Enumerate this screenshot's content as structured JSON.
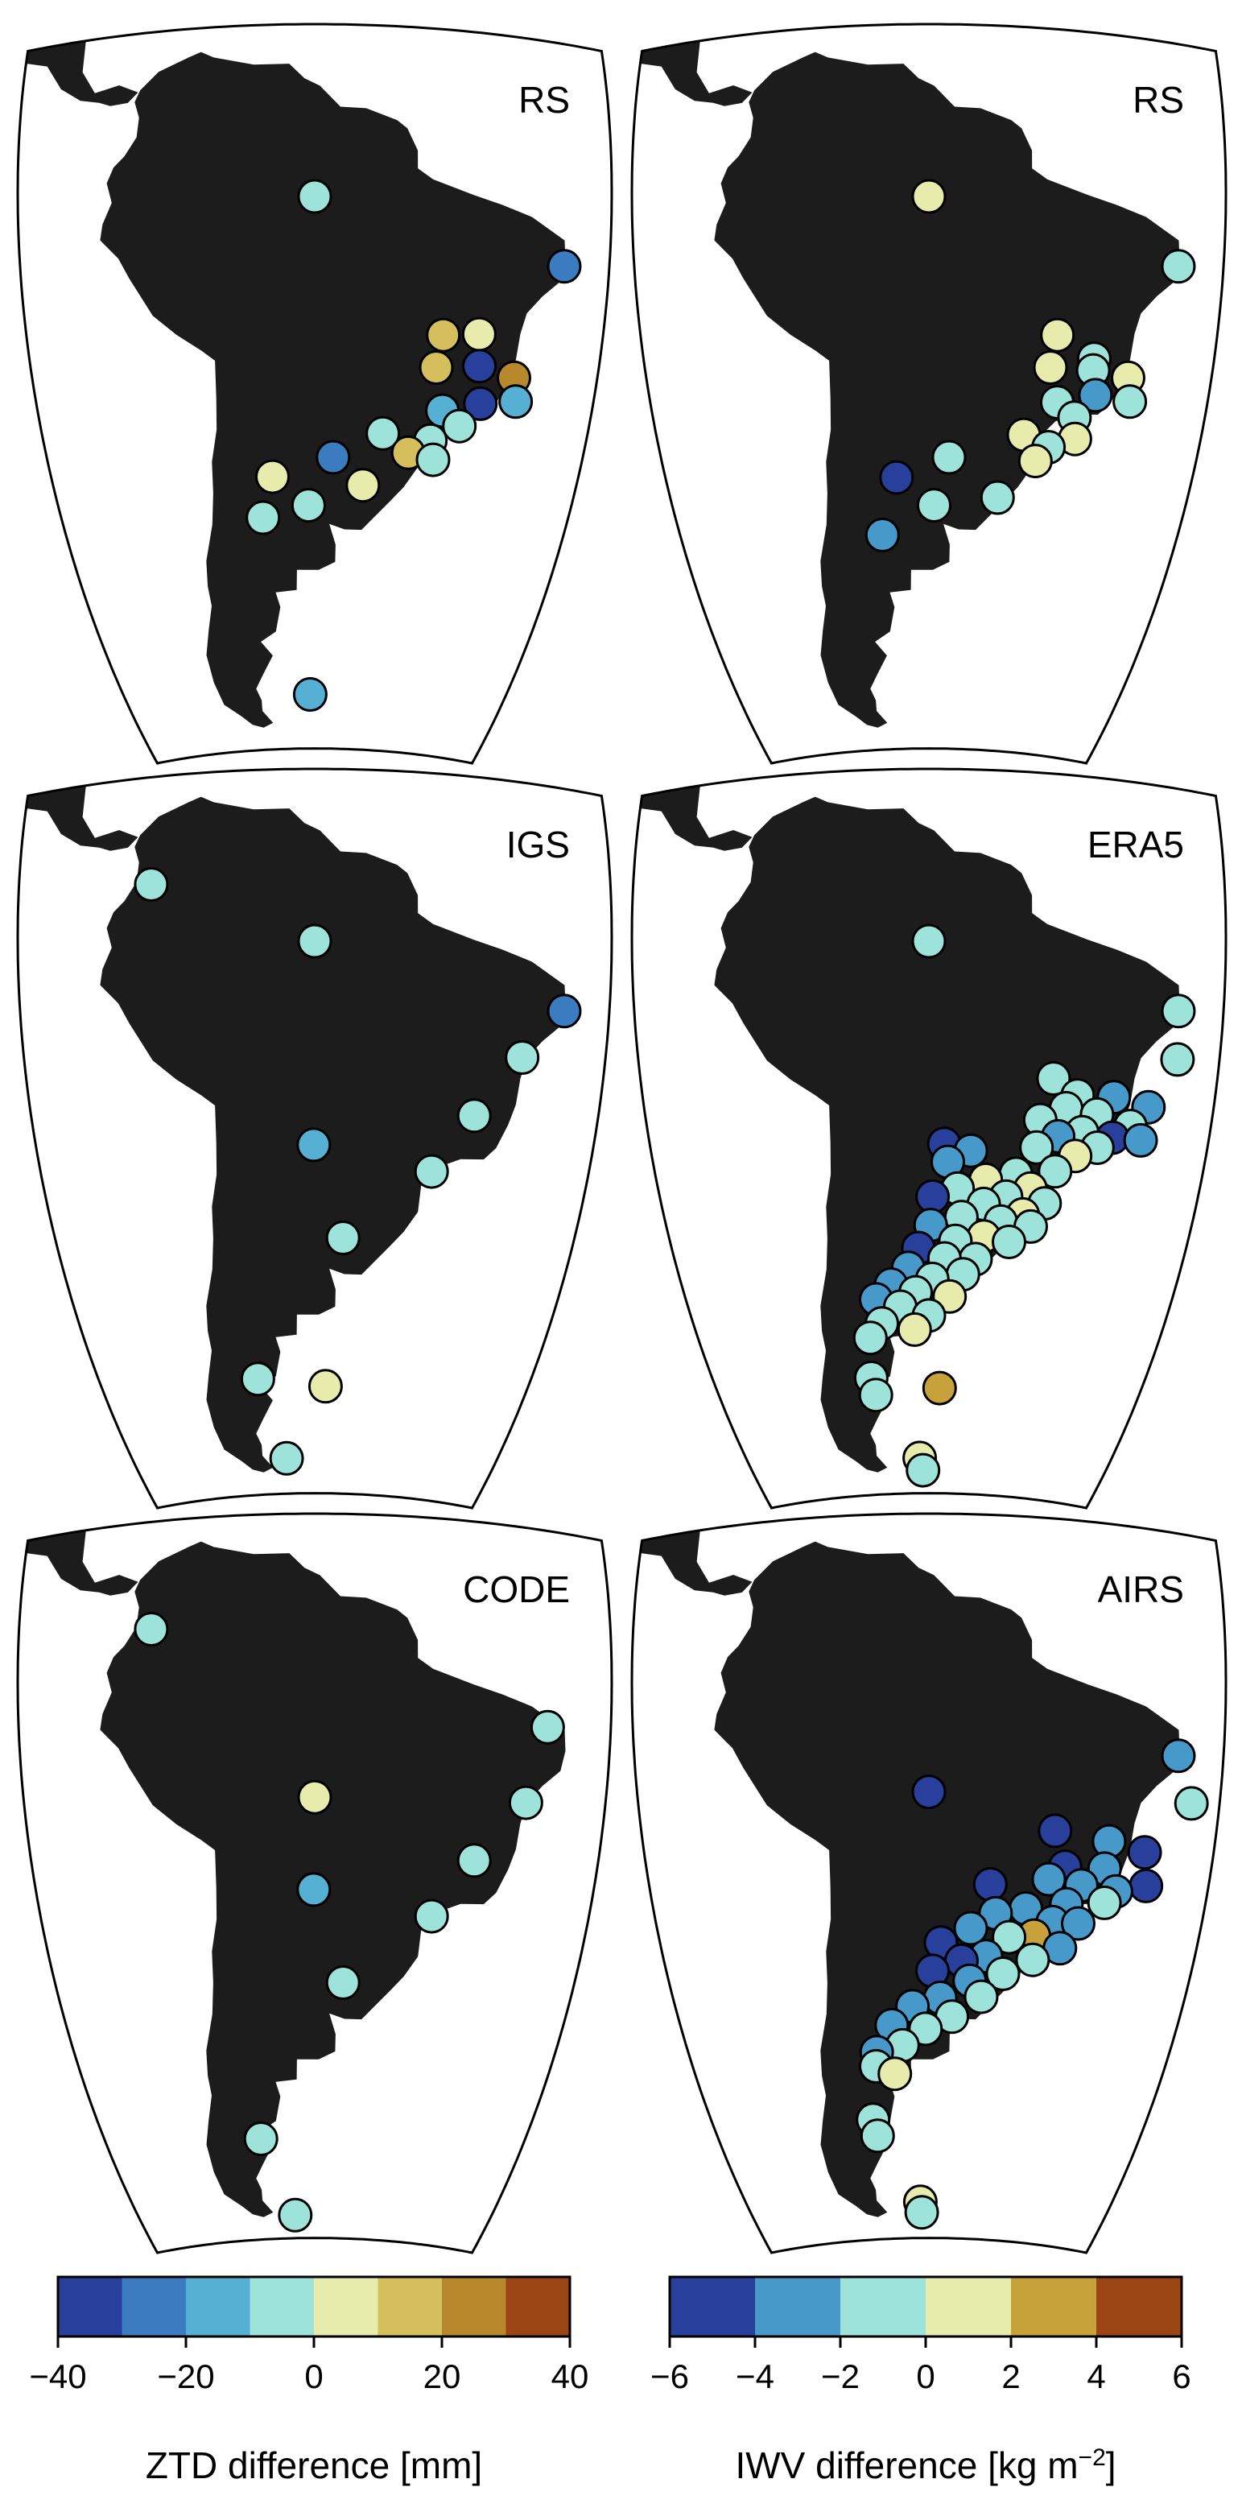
{
  "panels": [
    {
      "title": "RS",
      "quantity": "ZTD",
      "stations": [
        {
          "lon": -34.9,
          "lat": -8.0,
          "value": -22
        },
        {
          "lon": -60.0,
          "lat": -3.1,
          "value": -5
        },
        {
          "lon": -47.0,
          "lat": -15.9,
          "value": 15
        },
        {
          "lon": -43.3,
          "lat": -15.5,
          "value": 5
        },
        {
          "lon": -47.5,
          "lat": -19.0,
          "value": 15
        },
        {
          "lon": -43.0,
          "lat": -18.5,
          "value": -35
        },
        {
          "lon": -39.2,
          "lat": -19.2,
          "value": 25
        },
        {
          "lon": -42.5,
          "lat": -22.0,
          "value": -35
        },
        {
          "lon": -38.7,
          "lat": -21.4,
          "value": -15
        },
        {
          "lon": -46.5,
          "lat": -23.0,
          "value": -15
        },
        {
          "lon": -44.5,
          "lat": -24.3,
          "value": -5
        },
        {
          "lon": -52.7,
          "lat": -25.5,
          "value": -5
        },
        {
          "lon": -47.5,
          "lat": -25.9,
          "value": -5
        },
        {
          "lon": -49.8,
          "lat": -27.2,
          "value": 15
        },
        {
          "lon": -47.0,
          "lat": -27.7,
          "value": -5
        },
        {
          "lon": -58.0,
          "lat": -27.9,
          "value": -25
        },
        {
          "lon": -64.7,
          "lat": -29.7,
          "value": 5
        },
        {
          "lon": -54.6,
          "lat": -30.5,
          "value": 5
        },
        {
          "lon": -60.7,
          "lat": -32.5,
          "value": -5
        },
        {
          "lon": -66.0,
          "lat": -33.6,
          "value": -5
        },
        {
          "lon": -60.7,
          "lat": -51.8,
          "value": -15
        }
      ]
    },
    {
      "title": "RS",
      "quantity": "IWV",
      "stations": [
        {
          "lon": -34.9,
          "lat": -8.0,
          "value": -1
        },
        {
          "lon": -60.0,
          "lat": -3.1,
          "value": 1
        },
        {
          "lon": -47.0,
          "lat": -15.9,
          "value": 1
        },
        {
          "lon": -43.0,
          "lat": -17.8,
          "value": -1
        },
        {
          "lon": -47.5,
          "lat": -19.0,
          "value": 1
        },
        {
          "lon": -43.0,
          "lat": -18.9,
          "value": -1
        },
        {
          "lon": -39.2,
          "lat": -19.2,
          "value": 1
        },
        {
          "lon": -42.5,
          "lat": -21.2,
          "value": -3
        },
        {
          "lon": -38.7,
          "lat": -21.4,
          "value": -1
        },
        {
          "lon": -46.5,
          "lat": -22.2,
          "value": -1
        },
        {
          "lon": -44.5,
          "lat": -23.5,
          "value": -1
        },
        {
          "lon": -49.8,
          "lat": -25.5,
          "value": 1
        },
        {
          "lon": -44.2,
          "lat": -25.5,
          "value": 1
        },
        {
          "lon": -47.0,
          "lat": -26.5,
          "value": -1
        },
        {
          "lon": -48.3,
          "lat": -27.9,
          "value": 1
        },
        {
          "lon": -57.8,
          "lat": -27.9,
          "value": -1
        },
        {
          "lon": -63.6,
          "lat": -29.8,
          "value": -5
        },
        {
          "lon": -52.2,
          "lat": -31.6,
          "value": -1
        },
        {
          "lon": -59.4,
          "lat": -32.5,
          "value": -1
        },
        {
          "lon": -65.5,
          "lat": -35.3,
          "value": -3
        }
      ]
    },
    {
      "title": "IGS",
      "quantity": "ZTD",
      "stations": [
        {
          "lon": -76.0,
          "lat": 3.4,
          "value": -5
        },
        {
          "lon": -34.9,
          "lat": -8.0,
          "value": -25
        },
        {
          "lon": -60.0,
          "lat": -3.1,
          "value": -5
        },
        {
          "lon": -39.0,
          "lat": -13.0,
          "value": -5
        },
        {
          "lon": -43.5,
          "lat": -19.0,
          "value": -5
        },
        {
          "lon": -60.1,
          "lat": -22.5,
          "value": -15
        },
        {
          "lon": -47.5,
          "lat": -24.6,
          "value": -5
        },
        {
          "lon": -56.8,
          "lat": -31.3,
          "value": -5
        },
        {
          "lon": -67.8,
          "lat": -45.2,
          "value": -5
        },
        {
          "lon": -58.5,
          "lat": -46.1,
          "value": 5
        },
        {
          "lon": -64.6,
          "lat": -53.9,
          "value": -5
        }
      ]
    },
    {
      "title": "ERA5",
      "quantity": "IWV",
      "stations": [
        {
          "lon": -34.9,
          "lat": -8.0,
          "value": -1
        },
        {
          "lon": -60.0,
          "lat": -3.1,
          "value": -1
        },
        {
          "lon": -34.6,
          "lat": -12.6,
          "value": -1
        },
        {
          "lon": -47.4,
          "lat": -15.8,
          "value": -1
        },
        {
          "lon": -44.8,
          "lat": -17.2,
          "value": -1
        },
        {
          "lon": -41.0,
          "lat": -17.0,
          "value": -3
        },
        {
          "lon": -37.2,
          "lat": -17.5,
          "value": -3
        },
        {
          "lon": -45.9,
          "lat": -18.5,
          "value": -1
        },
        {
          "lon": -42.6,
          "lat": -18.8,
          "value": -1
        },
        {
          "lon": -38.9,
          "lat": -19.5,
          "value": -1
        },
        {
          "lon": -48.5,
          "lat": -19.8,
          "value": -1
        },
        {
          "lon": -44.0,
          "lat": -20.6,
          "value": -1
        },
        {
          "lon": -40.7,
          "lat": -20.8,
          "value": -5
        },
        {
          "lon": -37.6,
          "lat": -20.7,
          "value": -3
        },
        {
          "lon": -46.5,
          "lat": -21.2,
          "value": -3
        },
        {
          "lon": -42.2,
          "lat": -21.9,
          "value": -1
        },
        {
          "lon": -48.7,
          "lat": -22.4,
          "value": -1
        },
        {
          "lon": -44.5,
          "lat": -22.9,
          "value": 1
        },
        {
          "lon": -58.4,
          "lat": -22.4,
          "value": -5
        },
        {
          "lon": -55.6,
          "lat": -23.0,
          "value": -3
        },
        {
          "lon": -58.0,
          "lat": -24.1,
          "value": -3
        },
        {
          "lon": -46.5,
          "lat": -24.5,
          "value": -1
        },
        {
          "lon": -50.7,
          "lat": -25.0,
          "value": -1
        },
        {
          "lon": -53.9,
          "lat": -25.7,
          "value": 1
        },
        {
          "lon": -56.9,
          "lat": -26.6,
          "value": -1
        },
        {
          "lon": -49.0,
          "lat": -26.3,
          "value": 1
        },
        {
          "lon": -51.6,
          "lat": -27.2,
          "value": -1
        },
        {
          "lon": -59.6,
          "lat": -27.4,
          "value": -5
        },
        {
          "lon": -47.3,
          "lat": -27.6,
          "value": -1
        },
        {
          "lon": -54.0,
          "lat": -28.0,
          "value": -1
        },
        {
          "lon": -49.6,
          "lat": -28.8,
          "value": 1
        },
        {
          "lon": -56.4,
          "lat": -29.3,
          "value": -1
        },
        {
          "lon": -52.0,
          "lat": -29.6,
          "value": -1
        },
        {
          "lon": -59.8,
          "lat": -30.1,
          "value": -3
        },
        {
          "lon": -48.6,
          "lat": -29.9,
          "value": -1
        },
        {
          "lon": -53.8,
          "lat": -31.1,
          "value": 1
        },
        {
          "lon": -50.9,
          "lat": -31.5,
          "value": -1
        },
        {
          "lon": -57.0,
          "lat": -31.6,
          "value": -1
        },
        {
          "lon": -61.2,
          "lat": -32.3,
          "value": -5
        },
        {
          "lon": -54.6,
          "lat": -33.3,
          "value": -1
        },
        {
          "lon": -58.2,
          "lat": -33.3,
          "value": -1
        },
        {
          "lon": -62.4,
          "lat": -34.2,
          "value": -3
        },
        {
          "lon": -56.0,
          "lat": -34.8,
          "value": -1
        },
        {
          "lon": -59.6,
          "lat": -35.3,
          "value": -1
        },
        {
          "lon": -64.5,
          "lat": -35.8,
          "value": -3
        },
        {
          "lon": -61.6,
          "lat": -36.6,
          "value": -1
        },
        {
          "lon": -57.5,
          "lat": -37.0,
          "value": 1
        },
        {
          "lon": -66.4,
          "lat": -37.2,
          "value": -3
        },
        {
          "lon": -63.5,
          "lat": -38.0,
          "value": -1
        },
        {
          "lon": -60.0,
          "lat": -38.9,
          "value": -1
        },
        {
          "lon": -65.9,
          "lat": -39.6,
          "value": -1
        },
        {
          "lon": -61.8,
          "lat": -40.3,
          "value": 1
        },
        {
          "lon": -67.5,
          "lat": -41.0,
          "value": -1
        },
        {
          "lon": -67.9,
          "lat": -45.1,
          "value": -1
        },
        {
          "lon": -67.5,
          "lat": -46.9,
          "value": -1
        },
        {
          "lon": -58.5,
          "lat": -46.3,
          "value": 3
        },
        {
          "lon": -61.5,
          "lat": -53.9,
          "value": 1
        },
        {
          "lon": -61.0,
          "lat": -55.3,
          "value": -1
        }
      ]
    },
    {
      "title": "CODE",
      "quantity": "ZTD",
      "stations": [
        {
          "lon": -76.0,
          "lat": 3.4,
          "value": -5
        },
        {
          "lon": -36.8,
          "lat": -5.5,
          "value": -5
        },
        {
          "lon": -60.0,
          "lat": -13.8,
          "value": 5
        },
        {
          "lon": -38.6,
          "lat": -13.0,
          "value": -5
        },
        {
          "lon": -43.5,
          "lat": -19.0,
          "value": -5
        },
        {
          "lon": -60.1,
          "lat": -22.5,
          "value": -15
        },
        {
          "lon": -47.5,
          "lat": -24.6,
          "value": -5
        },
        {
          "lon": -56.8,
          "lat": -31.3,
          "value": -5
        },
        {
          "lon": -67.6,
          "lat": -46.8,
          "value": -5
        },
        {
          "lon": -63.3,
          "lat": -55.3,
          "value": -5
        }
      ]
    },
    {
      "title": "AIRS",
      "quantity": "IWV",
      "stations": [
        {
          "lon": -34.9,
          "lat": -8.0,
          "value": -3
        },
        {
          "lon": -60.0,
          "lat": -13.3,
          "value": -5
        },
        {
          "lon": -33.1,
          "lat": -12.3,
          "value": -1
        },
        {
          "lon": -47.2,
          "lat": -16.5,
          "value": -5
        },
        {
          "lon": -41.5,
          "lat": -17.0,
          "value": -3
        },
        {
          "lon": -37.6,
          "lat": -17.6,
          "value": -5
        },
        {
          "lon": -45.9,
          "lat": -19.8,
          "value": -5
        },
        {
          "lon": -41.7,
          "lat": -19.6,
          "value": -3
        },
        {
          "lon": -37.0,
          "lat": -20.7,
          "value": -5
        },
        {
          "lon": -47.5,
          "lat": -21.1,
          "value": -3
        },
        {
          "lon": -44.0,
          "lat": -21.4,
          "value": -3
        },
        {
          "lon": -40.2,
          "lat": -21.6,
          "value": -3
        },
        {
          "lon": -53.6,
          "lat": -21.9,
          "value": -5
        },
        {
          "lon": -45.4,
          "lat": -23.3,
          "value": -3
        },
        {
          "lon": -41.3,
          "lat": -22.8,
          "value": -1
        },
        {
          "lon": -49.7,
          "lat": -24.0,
          "value": -3
        },
        {
          "lon": -52.9,
          "lat": -24.6,
          "value": -3
        },
        {
          "lon": -46.7,
          "lat": -25.1,
          "value": -3
        },
        {
          "lon": -43.9,
          "lat": -25.0,
          "value": -3
        },
        {
          "lon": -48.6,
          "lat": -26.5,
          "value": 3
        },
        {
          "lon": -55.5,
          "lat": -26.1,
          "value": -3
        },
        {
          "lon": -51.3,
          "lat": -26.8,
          "value": -1
        },
        {
          "lon": -58.7,
          "lat": -27.5,
          "value": -5
        },
        {
          "lon": -45.6,
          "lat": -27.5,
          "value": -3
        },
        {
          "lon": -48.5,
          "lat": -28.8,
          "value": -1
        },
        {
          "lon": -53.7,
          "lat": -28.7,
          "value": -3
        },
        {
          "lon": -56.4,
          "lat": -29.2,
          "value": -5
        },
        {
          "lon": -59.6,
          "lat": -30.2,
          "value": -5
        },
        {
          "lon": -51.7,
          "lat": -30.3,
          "value": -1
        },
        {
          "lon": -55.4,
          "lat": -31.1,
          "value": -3
        },
        {
          "lon": -58.7,
          "lat": -32.8,
          "value": -3
        },
        {
          "lon": -54.0,
          "lat": -32.6,
          "value": -1
        },
        {
          "lon": -61.9,
          "lat": -33.6,
          "value": -3
        },
        {
          "lon": -57.3,
          "lat": -34.6,
          "value": -1
        },
        {
          "lon": -64.4,
          "lat": -35.4,
          "value": -3
        },
        {
          "lon": -60.4,
          "lat": -35.8,
          "value": -1
        },
        {
          "lon": -63.2,
          "lat": -37.4,
          "value": -1
        },
        {
          "lon": -66.4,
          "lat": -38.0,
          "value": -3
        },
        {
          "lon": -66.6,
          "lat": -39.4,
          "value": -1
        },
        {
          "lon": -64.3,
          "lat": -40.2,
          "value": 1
        },
        {
          "lon": -67.6,
          "lat": -44.8,
          "value": -1
        },
        {
          "lon": -67.2,
          "lat": -46.5,
          "value": -1
        },
        {
          "lon": -61.4,
          "lat": -53.8,
          "value": 1
        },
        {
          "lon": -61.2,
          "lat": -55.0,
          "value": -1
        }
      ]
    }
  ],
  "colorbars": [
    {
      "quantity": "ZTD",
      "label": "ZTD difference [mm]",
      "ticks": [
        "−40",
        "−20",
        "0",
        "20",
        "40"
      ],
      "tick_values": [
        -40,
        -20,
        0,
        20,
        40
      ],
      "range": [
        -40,
        40
      ],
      "bounds": [
        -40,
        -30,
        -20,
        -10,
        0,
        10,
        20,
        30,
        40
      ]
    },
    {
      "quantity": "IWV",
      "label_main": "IWV difference [kg m",
      "label_sup": "−2",
      "label_end": "]",
      "ticks": [
        "−6",
        "−4",
        "−2",
        "0",
        "2",
        "4",
        "6"
      ],
      "tick_values": [
        -6,
        -4,
        -2,
        0,
        2,
        4,
        6
      ],
      "range": [
        -6,
        6
      ],
      "bounds": [
        -6,
        -4,
        -2,
        0,
        2,
        4,
        6
      ]
    }
  ],
  "colors": {
    "land": "#1c1c1c",
    "ocean": "#ffffff",
    "ztd_bins": [
      "#283f9c",
      "#3a7cbf",
      "#56b0d4",
      "#9ee3d9",
      "#e7ebac",
      "#d4bf5c",
      "#b8882c",
      "#9c4514"
    ],
    "iwv_bins": [
      "#283f9c",
      "#4799c9",
      "#9ee3d9",
      "#e7ebac",
      "#c7a23a",
      "#9c4514"
    ]
  },
  "map": {
    "projection": "orthographic",
    "center": {
      "lon": -60,
      "lat": -20
    },
    "extent": {
      "lon": [
        -90,
        -30
      ],
      "lat": [
        -58,
        15
      ]
    }
  }
}
